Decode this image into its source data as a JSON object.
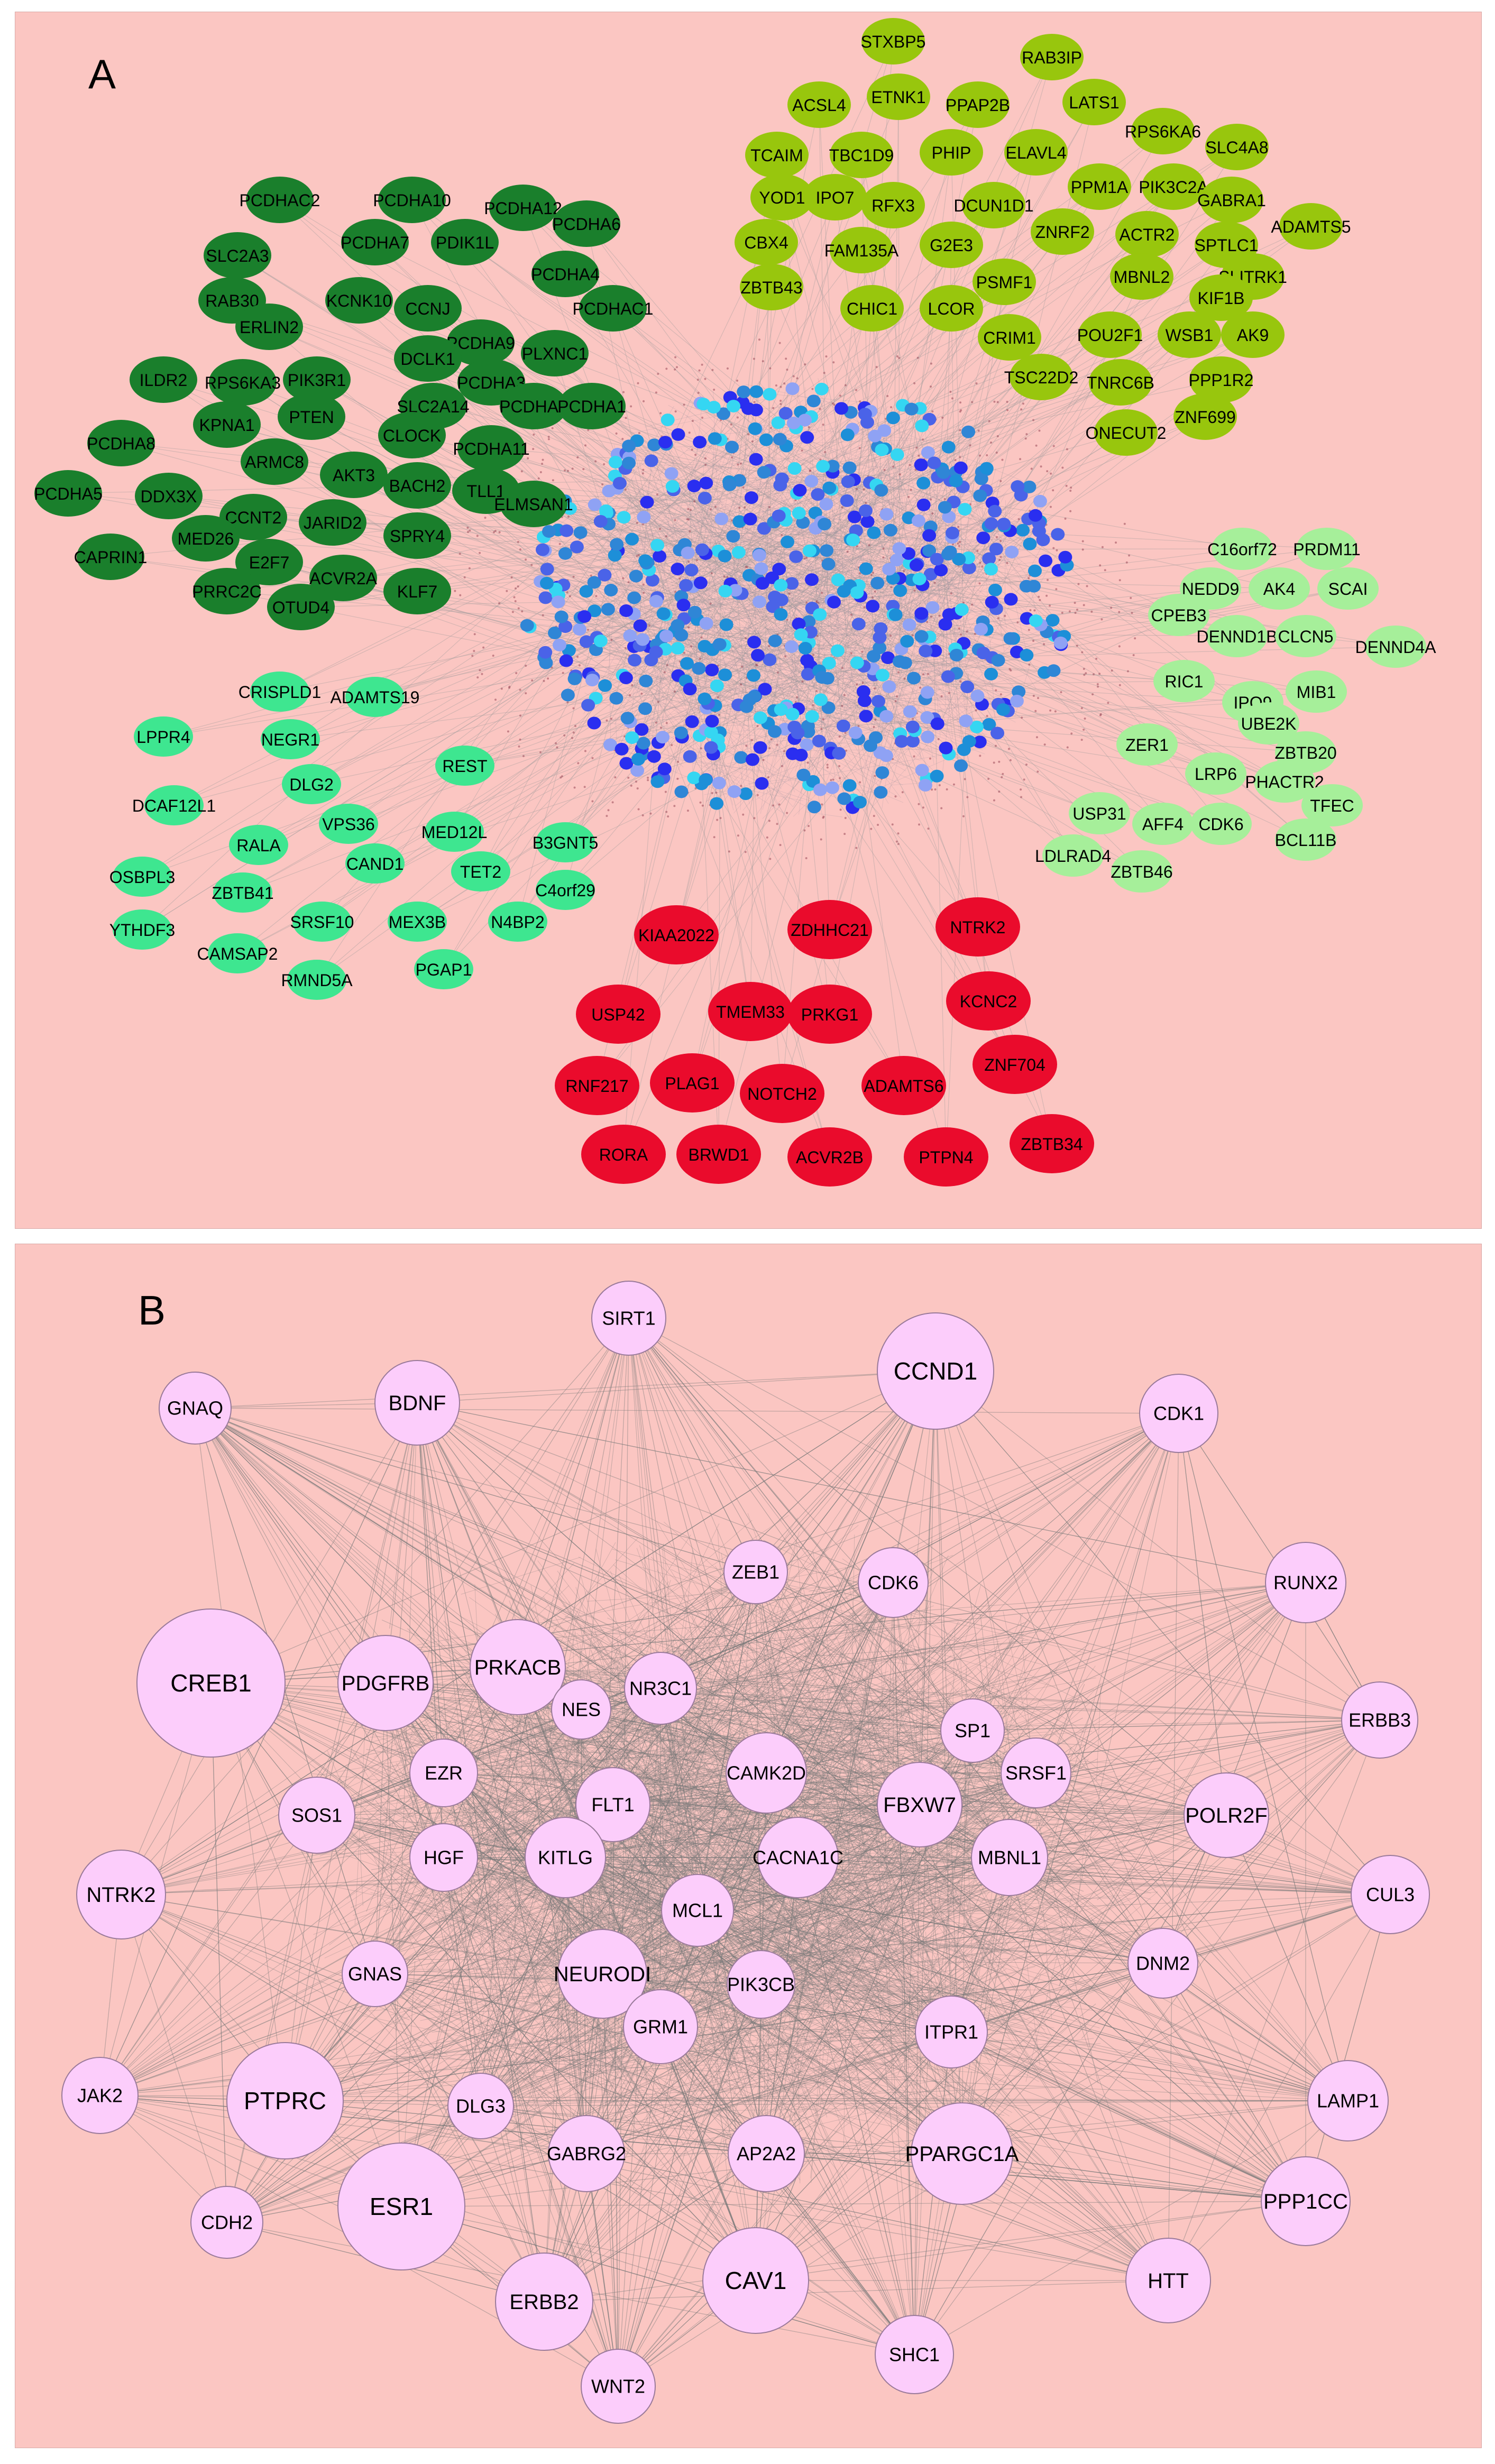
{
  "panels": [
    {
      "letter": "A"
    },
    {
      "letter": "B"
    }
  ],
  "colors": {
    "background": "#fbc6c2",
    "dark_green": "#1a7f2c",
    "lime_green": "#98c60d",
    "mint": "#3ee690",
    "light_green": "#a6ef9a",
    "red": "#ea0b2c",
    "core_blue": [
      "#2a2ef0",
      "#4a63e8",
      "#2f86d6",
      "#8fa2f4",
      "#35d6f2",
      "#1d8fd8"
    ],
    "hub_fill": "#fccdfb",
    "edge": "#7a7a7a"
  },
  "panel_a": {
    "dark_green_modules": [
      "PCDHAC2",
      "PCDHA10",
      "PCDHA12",
      "PCDHA6",
      "SLC2A3",
      "PCDHA7",
      "PDIK1L",
      "PCDHA4",
      "RAB30",
      "KCNK10",
      "CCNJ",
      "PCDHA9",
      "PLXNC1",
      "PCDHAC1",
      "ERLIN2",
      "DCLK1",
      "PCDHA3",
      "ILDR2",
      "RPS6KA3",
      "PIK3R1",
      "SLC2A14",
      "PCDHA2",
      "PCDHA1",
      "KPNA1",
      "PTEN",
      "CLOCK",
      "PCDHA11",
      "PCDHA8",
      "ARMC8",
      "AKT3",
      "BACH2",
      "TLL1",
      "PCDHA5",
      "DDX3X",
      "CCNT2",
      "JARID2",
      "ELMSAN1",
      "MED26",
      "SPRY4",
      "CAPRIN1",
      "E2F7",
      "ACVR2A",
      "PRRC2C",
      "KLF7",
      "OTUD4"
    ],
    "lime_modules": [
      "STXBP5",
      "RAB3IP",
      "ACSL4",
      "ETNK1",
      "PPAP2B",
      "LATS1",
      "RPS6KA6",
      "TCAIM",
      "TBC1D9",
      "PHIP",
      "ELAVL4",
      "SLC4A8",
      "YOD1",
      "IPO7",
      "RFX3",
      "DCUN1D1",
      "PPM1A",
      "PIK3C2A",
      "GABRA1",
      "ADAMTS5",
      "CBX4",
      "FAM135A",
      "G2E3",
      "ZNRF2",
      "ACTR2",
      "SPTLC1",
      "ZBTB43",
      "PSMF1",
      "MBNL2",
      "SLITRK1",
      "CHIC1",
      "LCOR",
      "KIF1B",
      "CRIM1",
      "POU2F1",
      "WSB1",
      "AK9",
      "TSC22D2",
      "TNRC6B",
      "PPP1R2",
      "ZNF699",
      "ONECUT2"
    ],
    "light_green_modules": [
      "C16orf72",
      "PRDM11",
      "NEDD9",
      "AK4",
      "SCAI",
      "CPEB3",
      "DENND1B",
      "CLCN5",
      "DENND4A",
      "RIC1",
      "IPO9",
      "MIB1",
      "UBE2K",
      "ZER1",
      "ZBTB20",
      "LRP6",
      "PHACTR2",
      "USP31",
      "AFF4",
      "TFEC",
      "CDK6",
      "LDLRAD4",
      "BCL11B",
      "ZBTB46"
    ],
    "mint_modules": [
      "CRISPLD1",
      "ADAMTS19",
      "LPPR4",
      "NEGR1",
      "REST",
      "DLG2",
      "DCAF12L1",
      "VPS36",
      "MED12L",
      "RALA",
      "B3GNT5",
      "CAND1",
      "TET2",
      "OSBPL3",
      "ZBTB41",
      "C4orf29",
      "SRSF10",
      "MEX3B",
      "N4BP2",
      "YTHDF3",
      "CAMSAP2",
      "PGAP1",
      "RMND5A"
    ],
    "red_modules": [
      "KIAA2022",
      "ZDHHC21",
      "NTRK2",
      "USP42",
      "TMEM33",
      "PRKG1",
      "KCNC2",
      "RNF217",
      "PLAG1",
      "NOTCH2",
      "ADAMTS6",
      "ZNF704",
      "RORA",
      "BRWD1",
      "ACVR2B",
      "PTPN4",
      "ZBTB34"
    ]
  },
  "panel_b": {
    "hub_nodes": [
      "SIRT1",
      "CCND1",
      "GNAQ",
      "BDNF",
      "CDK1",
      "ZEB1",
      "CDK6",
      "RUNX2",
      "CREB1",
      "PDGFRB",
      "PRKACB",
      "NR3C1",
      "NES",
      "SP1",
      "ERBB3",
      "EZR",
      "CAMK2D",
      "SRSF1",
      "FLT1",
      "FBXW7",
      "SOS1",
      "POLR2F",
      "HGF",
      "KITLG",
      "CACNA1C",
      "MBNL1",
      "NTRK2",
      "CUL3",
      "MCL1",
      "NEURODI",
      "GNAS",
      "PIK3CB",
      "DNM2",
      "GRM1",
      "ITPR1",
      "JAK2",
      "PTPRC",
      "LAMP1",
      "DLG3",
      "GABRG2",
      "AP2A2",
      "PPARGC1A",
      "CDH2",
      "ESR1",
      "PPP1CC",
      "CAV1",
      "HTT",
      "ERBB2",
      "SHC1",
      "WNT2"
    ]
  }
}
